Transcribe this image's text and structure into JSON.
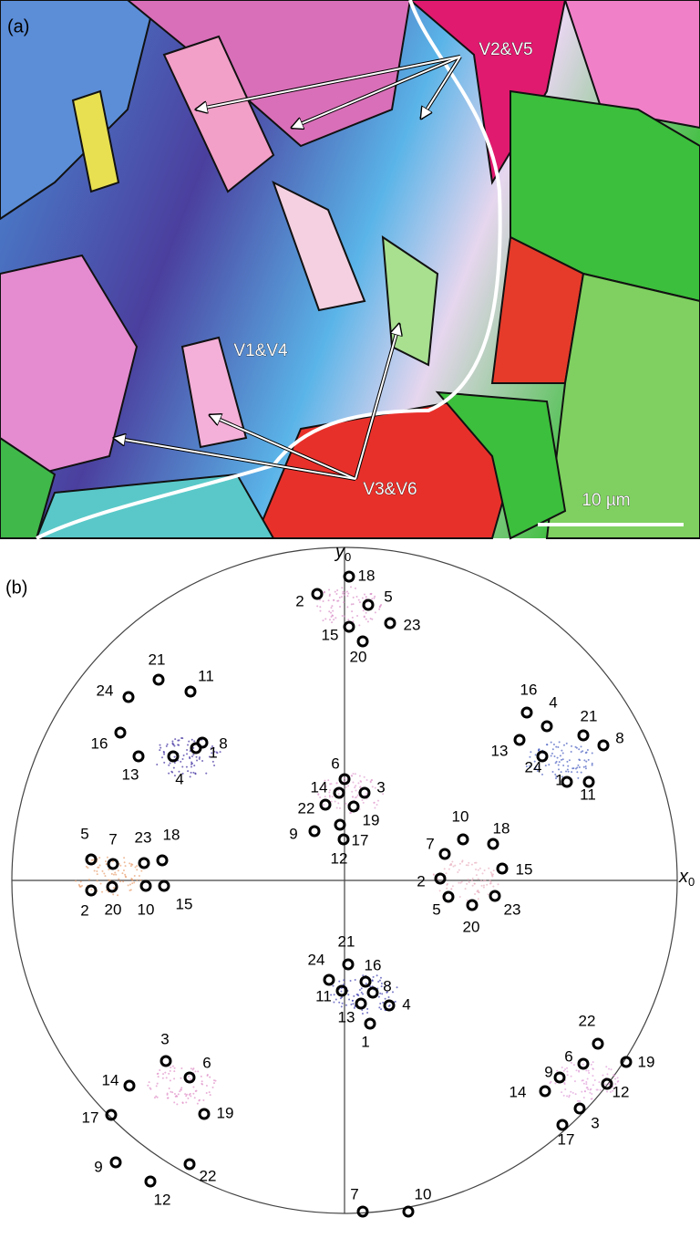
{
  "panel_a": {
    "label": "(a)",
    "annotations": [
      "V2&V5",
      "V1&V4",
      "V3&V6"
    ],
    "scale_bar": "10 µm"
  },
  "panel_b": {
    "label": "(b)",
    "x_axis": {
      "base": "x",
      "sub": "0"
    },
    "y_axis": {
      "base": "y",
      "sub": "0"
    },
    "markers": [
      "18",
      "2",
      "5",
      "23",
      "15",
      "20",
      "21",
      "24",
      "11",
      "8",
      "16",
      "13",
      "4",
      "1",
      "6",
      "14",
      "3",
      "22",
      "19",
      "9",
      "17",
      "12",
      "16",
      "4",
      "21",
      "8",
      "13",
      "24",
      "1",
      "11",
      "10",
      "18",
      "7",
      "15",
      "2",
      "5",
      "23",
      "20",
      "5",
      "7",
      "23",
      "18",
      "2",
      "20",
      "10",
      "15",
      "21",
      "24",
      "16",
      "11",
      "8",
      "13",
      "4",
      "1",
      "22",
      "6",
      "19",
      "9",
      "12",
      "14",
      "3",
      "17",
      "3",
      "14",
      "6",
      "17",
      "19",
      "9",
      "22",
      "12",
      "7",
      "10"
    ]
  }
}
